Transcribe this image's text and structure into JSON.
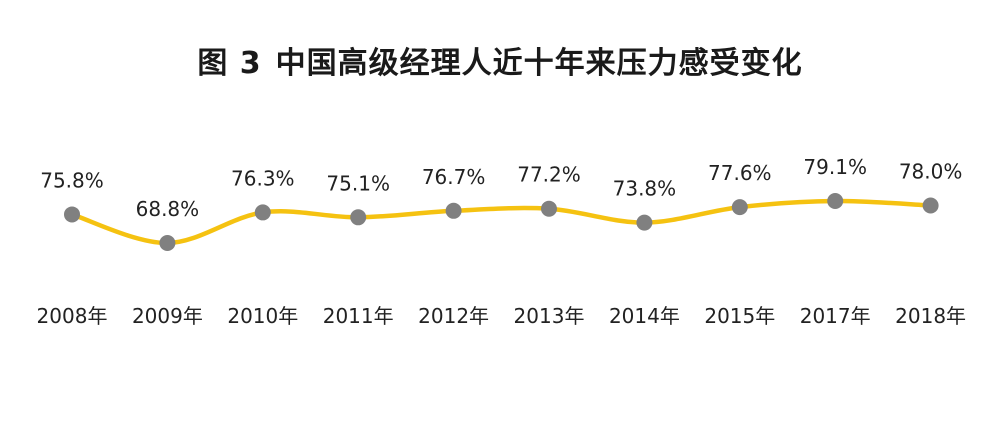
{
  "chart_data": {
    "type": "line",
    "figure_label": "图 3",
    "title": "中国高级经理人近十年来压力感受变化",
    "xlabel": "",
    "ylabel": "",
    "categories": [
      "2008年",
      "2009年",
      "2010年",
      "2011年",
      "2012年",
      "2013年",
      "2014年",
      "2015年",
      "2017年",
      "2018年"
    ],
    "series": [
      {
        "values": [
          75.8,
          68.8,
          76.3,
          75.1,
          76.7,
          77.2,
          73.8,
          77.6,
          79.1,
          78.0
        ],
        "labels": [
          "75.8%",
          "68.8%",
          "76.3%",
          "75.1%",
          "76.7%",
          "77.2%",
          "73.8%",
          "77.6%",
          "79.1%",
          "78.0%"
        ]
      }
    ],
    "grid": false,
    "legend": "none",
    "colors": {
      "line": "#F5C211",
      "marker": "#808080",
      "text": "#222222"
    }
  }
}
